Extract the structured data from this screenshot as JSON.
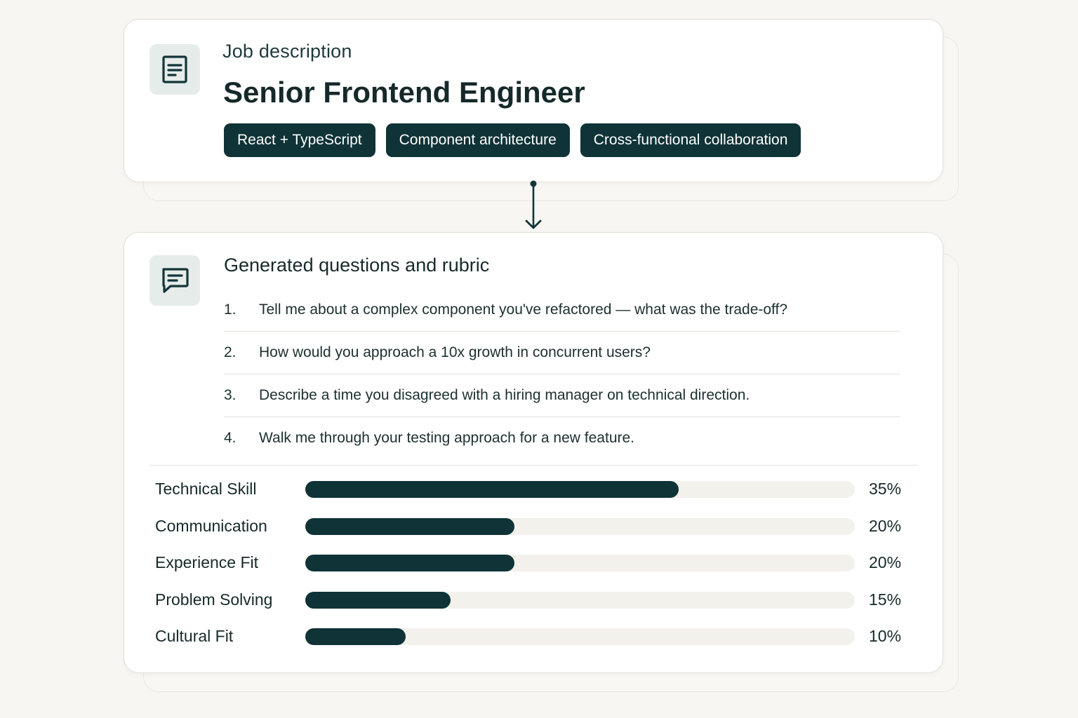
{
  "job_card": {
    "eyebrow": "Job description",
    "title": "Senior Frontend Engineer",
    "icon": "document-icon",
    "tags": [
      "React + TypeScript",
      "Component architecture",
      "Cross-functional collaboration"
    ]
  },
  "questions_card": {
    "title": "Generated questions and rubric",
    "icon": "chat-icon",
    "questions": [
      {
        "num": "1.",
        "text": "Tell me about a complex component you've refactored — what was the trade-off?"
      },
      {
        "num": "2.",
        "text": "How would you approach a 10x growth in concurrent users?"
      },
      {
        "num": "3.",
        "text": "Describe a time you disagreed with a hiring manager on technical direction."
      },
      {
        "num": "4.",
        "text": "Walk me through your testing approach for a new feature."
      }
    ],
    "rubric": [
      {
        "label": "Technical Skill",
        "value": "35%",
        "fill_fraction": 0.68
      },
      {
        "label": "Communication",
        "value": "20%",
        "fill_fraction": 0.38
      },
      {
        "label": "Experience Fit",
        "value": "20%",
        "fill_fraction": 0.38
      },
      {
        "label": "Problem Solving",
        "value": "15%",
        "fill_fraction": 0.265
      },
      {
        "label": "Cultural Fit",
        "value": "10%",
        "fill_fraction": 0.183
      }
    ]
  },
  "colors": {
    "accent": "#0f3336",
    "background": "#f8f6f2",
    "card": "#ffffff",
    "icon_tile": "#e6ecea",
    "track": "#f3f1ec"
  }
}
